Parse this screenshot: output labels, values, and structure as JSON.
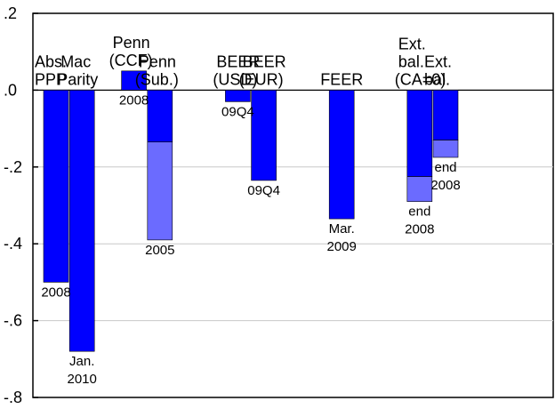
{
  "chart_data": {
    "type": "bar",
    "stacked": true,
    "ylim": [
      -0.8,
      0.2
    ],
    "yticks": [
      0.2,
      0.0,
      -0.2,
      -0.4,
      -0.6,
      -0.8
    ],
    "ytick_labels": [
      ".2",
      ".0",
      "-.2",
      "-.4",
      "-.6",
      "-.8"
    ],
    "grid": "horizontal",
    "colors": {
      "primary": "#0000ff",
      "secondary": "#6b6bff"
    },
    "bars": [
      {
        "x": 1,
        "value": -0.5,
        "segments": [
          -0.5
        ],
        "top_label": [
          "Abs.",
          "PPP"
        ],
        "bottom_label": [
          "2008"
        ]
      },
      {
        "x": 2,
        "value": -0.68,
        "segments": [
          -0.68
        ],
        "top_label": [
          "Mac",
          "Parity"
        ],
        "bottom_label": [
          "Jan.",
          "2010"
        ]
      },
      {
        "x": 4,
        "value": 0.05,
        "segments": [
          0.05
        ],
        "top_label": [
          "Penn",
          "(CCF)"
        ],
        "bottom_label": [
          "2008"
        ]
      },
      {
        "x": 5,
        "value": -0.39,
        "segments": [
          -0.135,
          -0.255
        ],
        "top_label": [
          "Penn",
          "(Sub.)"
        ],
        "bottom_label": [
          "2005"
        ]
      },
      {
        "x": 8,
        "value": -0.03,
        "segments": [
          -0.03
        ],
        "top_label": [
          "BEER",
          "(USD)"
        ],
        "bottom_label": [
          "09Q4"
        ]
      },
      {
        "x": 9,
        "value": -0.235,
        "segments": [
          -0.235
        ],
        "top_label": [
          "BEER",
          "(EUR)"
        ],
        "bottom_label": [
          "09Q4"
        ]
      },
      {
        "x": 12,
        "value": -0.335,
        "segments": [
          -0.335
        ],
        "top_label": [
          "FEER"
        ],
        "bottom_label": [
          "Mar.",
          "2009"
        ]
      },
      {
        "x": 15,
        "value": -0.29,
        "segments": [
          -0.225,
          -0.065
        ],
        "top_label": [
          "Ext.",
          "bal.",
          "(CA=0)"
        ],
        "bottom_label": [
          "end",
          "2008"
        ]
      },
      {
        "x": 16,
        "value": -0.175,
        "segments": [
          -0.13,
          -0.045
        ],
        "top_label": [
          "Ext.",
          "bal."
        ],
        "bottom_label": [
          "end",
          "2008"
        ]
      }
    ]
  }
}
